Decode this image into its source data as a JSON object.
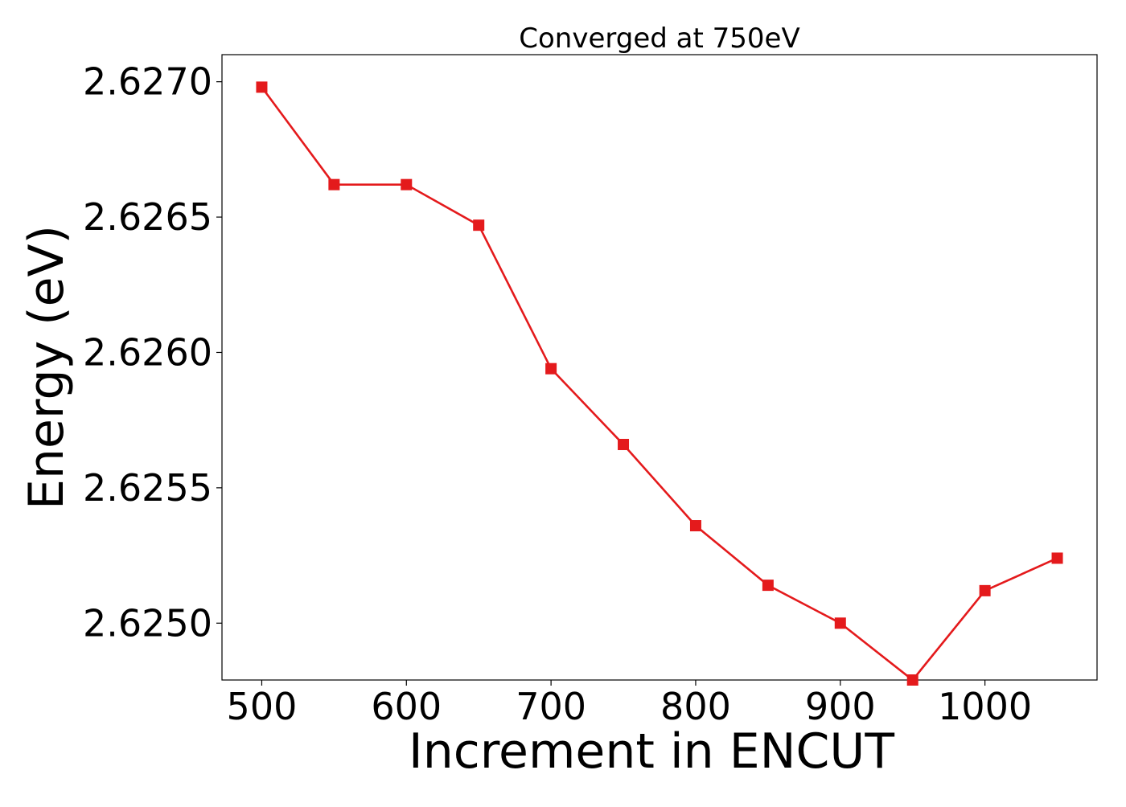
{
  "chart_data": {
    "type": "line",
    "title": "Converged at 750eV",
    "xlabel": "Increment in ENCUT",
    "ylabel": "Energy (eV)",
    "x": [
      500,
      550,
      600,
      650,
      700,
      750,
      800,
      850,
      900,
      950,
      1000,
      1050
    ],
    "series": [
      {
        "values": [
          2.62698,
          2.62662,
          2.62662,
          2.62647,
          2.62594,
          2.62566,
          2.62536,
          2.62514,
          2.625,
          2.62479,
          2.62512,
          2.62524
        ],
        "color": "#e41a1c",
        "marker": "square"
      }
    ],
    "xlim": [
      472.5,
      1077.5
    ],
    "ylim": [
      2.62479,
      2.6271
    ],
    "xticks": [
      500,
      600,
      700,
      800,
      900,
      1000
    ],
    "xtick_labels": [
      "500",
      "600",
      "700",
      "800",
      "900",
      "1000"
    ],
    "yticks": [
      2.625,
      2.6255,
      2.626,
      2.6265,
      2.627
    ],
    "ytick_labels": [
      "2.6250",
      "2.6255",
      "2.6260",
      "2.6265",
      "2.6270"
    ],
    "grid": false,
    "legend": false
  }
}
